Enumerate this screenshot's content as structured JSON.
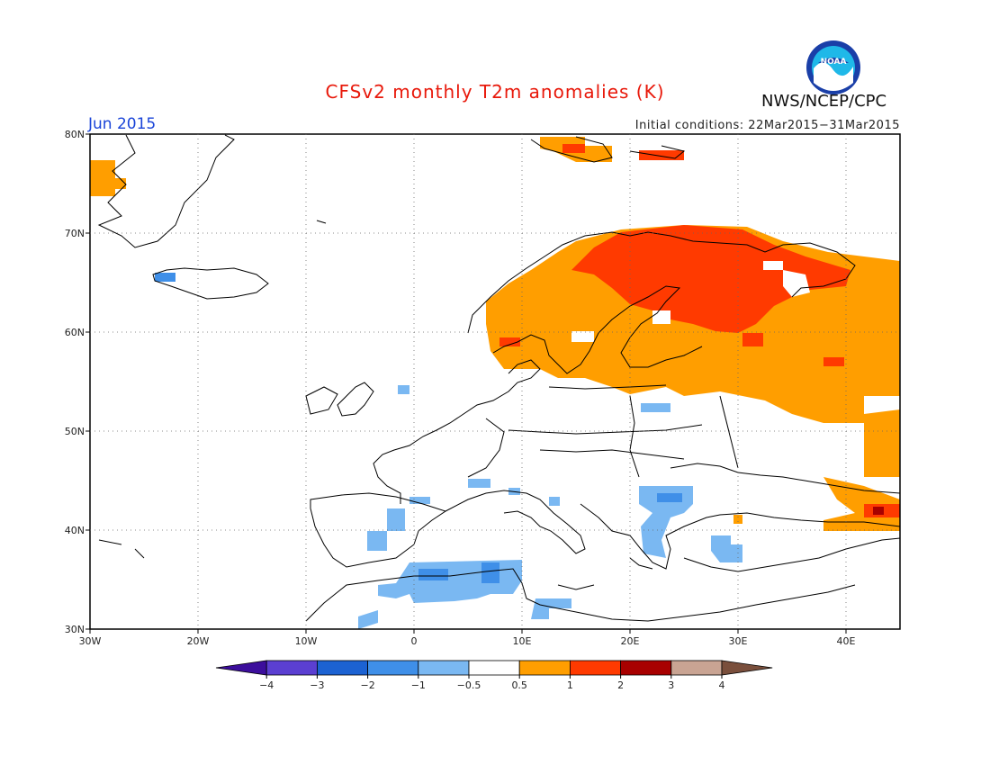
{
  "header": {
    "title": "CFSv2 monthly T2m anomalies (K)",
    "month": "Jun 2015",
    "initial_conditions": "Initial conditions: 22Mar2015−31Mar2015",
    "agency": "NWS/NCEP/CPC",
    "logo_text": "NOAA",
    "logo_icon": "noaa-logo-icon"
  },
  "map": {
    "region": "Europe",
    "projection": "lat-lon",
    "lon_range": [
      -30,
      45
    ],
    "lat_range": [
      30,
      80
    ],
    "y_ticks": [
      "30N",
      "40N",
      "50N",
      "60N",
      "70N",
      "80N"
    ],
    "x_ticks": [
      "30W",
      "20W",
      "10W",
      "0",
      "10E",
      "20E",
      "30E",
      "40E"
    ],
    "grid": "dotted"
  },
  "colorbar": {
    "labels": [
      "−4",
      "−3",
      "−2",
      "−1",
      "−0.5",
      "0.5",
      "1",
      "2",
      "3",
      "4"
    ],
    "colors": [
      "#3c0e9c",
      "#5b3fd1",
      "#1c62d2",
      "#3f8fe8",
      "#7ab8f2",
      "#ffffff",
      "#ff9e00",
      "#ff3a00",
      "#a80000",
      "#c9a493",
      "#7a4f3c"
    ]
  },
  "colors": {
    "title": "#e8180a",
    "month": "#1a44d8",
    "orange": "#ff9e00",
    "red_orange": "#ff3a00",
    "dark_red": "#a80000",
    "light_blue": "#7ab8f2",
    "medium_blue": "#3f8fe8"
  }
}
